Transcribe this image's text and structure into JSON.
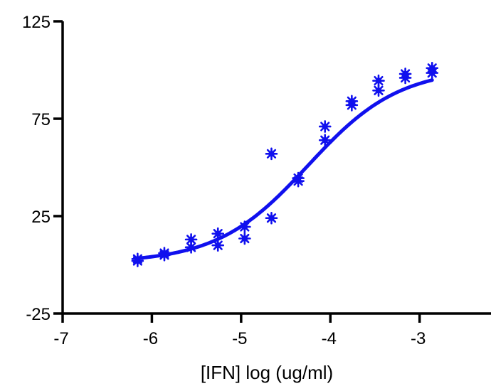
{
  "chart_data": {
    "type": "scatter",
    "title": "",
    "xlabel": "[IFN] log (ug/ml)",
    "ylabel": "",
    "xlim": [
      -7,
      -2.2
    ],
    "ylim": [
      -25,
      125
    ],
    "xticks": [
      -7,
      -6,
      -5,
      -4,
      -3
    ],
    "xtick_labels": [
      "-7",
      "-6",
      "-5",
      "-4",
      "-3"
    ],
    "yticks": [
      -25,
      25,
      75,
      125
    ],
    "ytick_labels": [
      "-25",
      "25",
      "75",
      "125"
    ],
    "grid": false,
    "legend": "none",
    "series": [
      {
        "color": "#1010ee",
        "marker": "asterisk",
        "points": [
          {
            "x": -6.16,
            "y": 2.0
          },
          {
            "x": -6.16,
            "y": 3.0
          },
          {
            "x": -5.86,
            "y": 5.0
          },
          {
            "x": -5.86,
            "y": 6.0
          },
          {
            "x": -5.56,
            "y": 9.0
          },
          {
            "x": -5.56,
            "y": 13.0
          },
          {
            "x": -5.26,
            "y": 10.0
          },
          {
            "x": -5.26,
            "y": 16.0
          },
          {
            "x": -4.96,
            "y": 13.5
          },
          {
            "x": -4.96,
            "y": 19.5
          },
          {
            "x": -4.66,
            "y": 24.0
          },
          {
            "x": -4.66,
            "y": 57.0
          },
          {
            "x": -4.36,
            "y": 43.0
          },
          {
            "x": -4.36,
            "y": 44.5
          },
          {
            "x": -4.06,
            "y": 64.0
          },
          {
            "x": -4.06,
            "y": 71.0
          },
          {
            "x": -3.76,
            "y": 82.0
          },
          {
            "x": -3.76,
            "y": 84.0
          },
          {
            "x": -3.46,
            "y": 89.5
          },
          {
            "x": -3.46,
            "y": 94.5
          },
          {
            "x": -3.16,
            "y": 96.0
          },
          {
            "x": -3.16,
            "y": 98.0
          },
          {
            "x": -2.86,
            "y": 98.5
          },
          {
            "x": -2.86,
            "y": 101.0
          }
        ]
      }
    ],
    "fit": {
      "type": "sigmoidal dose-response",
      "color": "#1010ee",
      "bottom": 1.0,
      "top": 101.0,
      "log_ec50": -4.25,
      "hill_slope": 0.85,
      "x_range": [
        -6.16,
        -2.86
      ]
    }
  }
}
